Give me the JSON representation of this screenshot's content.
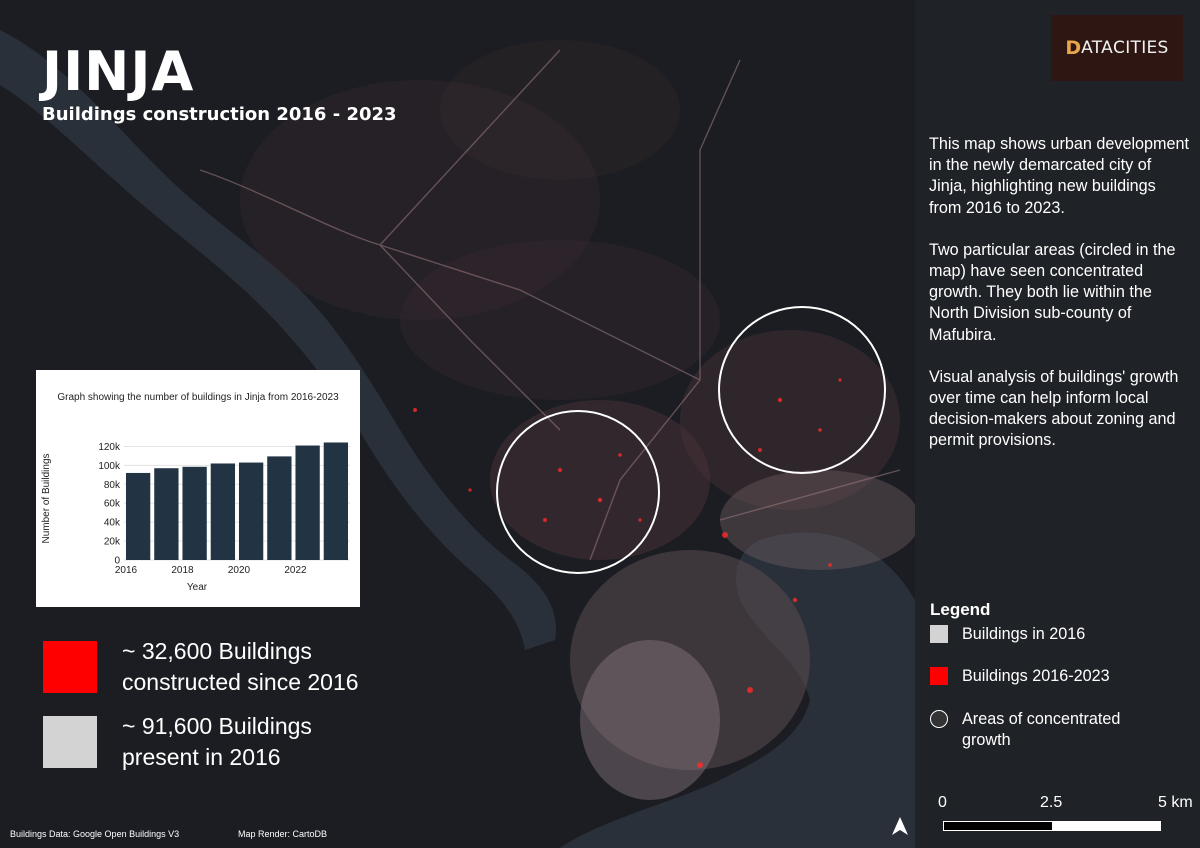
{
  "title": "JINJA",
  "subtitle": "Buildings construction 2016 - 2023",
  "logo": {
    "d": "D",
    "rest": "ATA",
    "cities": "CITIES"
  },
  "description": [
    "This map shows urban development in the newly demarcated city of Jinja, highlighting new buildings from 2016 to 2023.",
    "Two particular areas (circled in the map) have seen concentrated growth. They both lie within the North Division sub-county of Mafubira.",
    "Visual analysis of buildings' growth over time can help inform local decision-makers about zoning and permit provisions."
  ],
  "legend": {
    "title": "Legend",
    "items": [
      {
        "label": "Buildings in 2016",
        "color": "#d3d3d3"
      },
      {
        "label": "Buildings 2016-2023",
        "color": "#ff0000"
      },
      {
        "label": "Areas of concentrated growth"
      }
    ]
  },
  "scale": {
    "labels": [
      "0",
      "2.5",
      "5 km"
    ]
  },
  "stats": {
    "new": {
      "line1": "~ 32,600 Buildings",
      "line2": "constructed since 2016",
      "color": "#ff0000"
    },
    "old": {
      "line1": "~ 91,600 Buildings",
      "line2": "present in 2016",
      "color": "#d3d3d3"
    }
  },
  "footer": {
    "data": "Buildings Data: Google Open Buildings V3",
    "render": "Map Render: CartoDB"
  },
  "colors": {
    "land": "#1b1d22",
    "water": "#2a3039",
    "panel": "#1f2226",
    "bar": "#223344"
  },
  "chart_data": {
    "type": "bar",
    "title": "Graph showing the number of buildings in Jinja from 2016-2023",
    "xlabel": "Year",
    "ylabel": "Number of Buildings",
    "categories": [
      "2016",
      "2017",
      "2018",
      "2019",
      "2020",
      "2021",
      "2022",
      "2023"
    ],
    "values": [
      92000,
      97000,
      98500,
      102000,
      103000,
      109500,
      121000,
      124200
    ],
    "ylim": [
      0,
      130000
    ],
    "yticks": [
      "0",
      "20k",
      "40k",
      "60k",
      "80k",
      "100k",
      "120k"
    ],
    "ytick_values": [
      0,
      20000,
      40000,
      60000,
      80000,
      100000,
      120000
    ],
    "xticks": [
      "2016",
      "2018",
      "2020",
      "2022"
    ],
    "grid": true
  }
}
